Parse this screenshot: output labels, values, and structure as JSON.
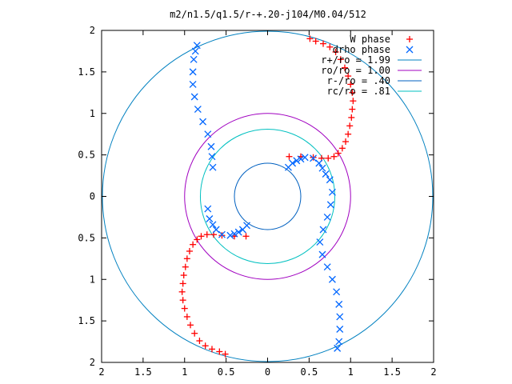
{
  "chart_data": {
    "type": "scatter",
    "title": "m2/n1.5/q1.5/r-+.20-j104/M0.04/512",
    "xlim": [
      -2,
      2
    ],
    "ylim": [
      -2,
      2
    ],
    "x_ticks": [
      {
        "value": -2,
        "label": "2"
      },
      {
        "value": -1.5,
        "label": "1.5"
      },
      {
        "value": -1,
        "label": "1"
      },
      {
        "value": -0.5,
        "label": "0.5"
      },
      {
        "value": 0,
        "label": "0"
      },
      {
        "value": 0.5,
        "label": "0.5"
      },
      {
        "value": 1,
        "label": "1"
      },
      {
        "value": 1.5,
        "label": "1.5"
      },
      {
        "value": 2,
        "label": "2"
      }
    ],
    "y_ticks": [
      {
        "value": 2,
        "label": "2"
      },
      {
        "value": 1.5,
        "label": "1.5"
      },
      {
        "value": 1,
        "label": "1"
      },
      {
        "value": 0.5,
        "label": "0.5"
      },
      {
        "value": 0,
        "label": "0"
      },
      {
        "value": -0.5,
        "label": "0.5"
      },
      {
        "value": -1,
        "label": "1"
      },
      {
        "value": -1.5,
        "label": "1.5"
      },
      {
        "value": -2,
        "label": "2"
      }
    ],
    "legend_position": "top-right",
    "grid": false,
    "series": [
      {
        "name": "W phase",
        "marker": "plus",
        "color": "#ff0000",
        "points": [
          [
            0.26,
            0.48
          ],
          [
            0.4,
            0.48
          ],
          [
            0.55,
            0.47
          ],
          [
            0.65,
            0.46
          ],
          [
            0.73,
            0.46
          ],
          [
            0.8,
            0.48
          ],
          [
            0.85,
            0.52
          ],
          [
            0.9,
            0.58
          ],
          [
            0.94,
            0.66
          ],
          [
            0.97,
            0.75
          ],
          [
            0.99,
            0.85
          ],
          [
            1.01,
            0.95
          ],
          [
            1.02,
            1.05
          ],
          [
            1.03,
            1.15
          ],
          [
            1.02,
            1.25
          ],
          [
            1.0,
            1.35
          ],
          [
            0.97,
            1.45
          ],
          [
            0.93,
            1.55
          ],
          [
            0.88,
            1.65
          ],
          [
            0.82,
            1.74
          ],
          [
            0.75,
            1.8
          ],
          [
            0.67,
            1.84
          ],
          [
            0.58,
            1.87
          ],
          [
            0.51,
            1.9
          ],
          [
            -0.26,
            -0.48
          ],
          [
            -0.4,
            -0.48
          ],
          [
            -0.55,
            -0.47
          ],
          [
            -0.65,
            -0.46
          ],
          [
            -0.73,
            -0.46
          ],
          [
            -0.8,
            -0.48
          ],
          [
            -0.85,
            -0.52
          ],
          [
            -0.9,
            -0.58
          ],
          [
            -0.94,
            -0.66
          ],
          [
            -0.97,
            -0.75
          ],
          [
            -0.99,
            -0.85
          ],
          [
            -1.01,
            -0.95
          ],
          [
            -1.02,
            -1.05
          ],
          [
            -1.03,
            -1.15
          ],
          [
            -1.02,
            -1.25
          ],
          [
            -1.0,
            -1.35
          ],
          [
            -0.97,
            -1.45
          ],
          [
            -0.93,
            -1.55
          ],
          [
            -0.88,
            -1.65
          ],
          [
            -0.82,
            -1.74
          ],
          [
            -0.75,
            -1.8
          ],
          [
            -0.67,
            -1.84
          ],
          [
            -0.58,
            -1.87
          ],
          [
            -0.51,
            -1.9
          ]
        ]
      },
      {
        "name": "drho phase",
        "marker": "cross",
        "color": "#0066ff",
        "points": [
          [
            0.25,
            0.35
          ],
          [
            0.3,
            0.4
          ],
          [
            0.35,
            0.43
          ],
          [
            0.4,
            0.45
          ],
          [
            0.45,
            0.47
          ],
          [
            0.55,
            0.46
          ],
          [
            0.62,
            0.4
          ],
          [
            0.66,
            0.34
          ],
          [
            0.7,
            0.27
          ],
          [
            0.75,
            0.2
          ],
          [
            0.78,
            0.05
          ],
          [
            0.76,
            -0.1
          ],
          [
            0.72,
            -0.25
          ],
          [
            0.67,
            -0.4
          ],
          [
            0.63,
            -0.55
          ],
          [
            0.66,
            -0.7
          ],
          [
            0.72,
            -0.85
          ],
          [
            0.78,
            -1.0
          ],
          [
            0.83,
            -1.15
          ],
          [
            0.86,
            -1.3
          ],
          [
            0.87,
            -1.45
          ],
          [
            0.87,
            -1.6
          ],
          [
            0.86,
            -1.75
          ],
          [
            0.84,
            -1.83
          ],
          [
            -0.25,
            -0.35
          ],
          [
            -0.3,
            -0.4
          ],
          [
            -0.35,
            -0.43
          ],
          [
            -0.4,
            -0.45
          ],
          [
            -0.45,
            -0.47
          ],
          [
            -0.55,
            -0.46
          ],
          [
            -0.62,
            -0.4
          ],
          [
            -0.66,
            -0.34
          ],
          [
            -0.7,
            -0.27
          ],
          [
            -0.72,
            -0.15
          ],
          [
            -0.66,
            0.35
          ],
          [
            -0.67,
            0.48
          ],
          [
            -0.68,
            0.6
          ],
          [
            -0.72,
            0.75
          ],
          [
            -0.78,
            0.9
          ],
          [
            -0.84,
            1.05
          ],
          [
            -0.88,
            1.2
          ],
          [
            -0.9,
            1.35
          ],
          [
            -0.9,
            1.5
          ],
          [
            -0.89,
            1.65
          ],
          [
            -0.87,
            1.75
          ],
          [
            -0.85,
            1.82
          ]
        ]
      }
    ],
    "circles": [
      {
        "name": "r+/ro = 1.99",
        "radius": 1.99,
        "color": "#0080c0"
      },
      {
        "name": "ro/ro = 1.00",
        "radius": 1.0,
        "color": "#a000c0"
      },
      {
        "name": "r-/ro = .40",
        "radius": 0.4,
        "color": "#0060c0"
      },
      {
        "name": "rc/ro = .81",
        "radius": 0.81,
        "color": "#00c0c0"
      }
    ]
  }
}
